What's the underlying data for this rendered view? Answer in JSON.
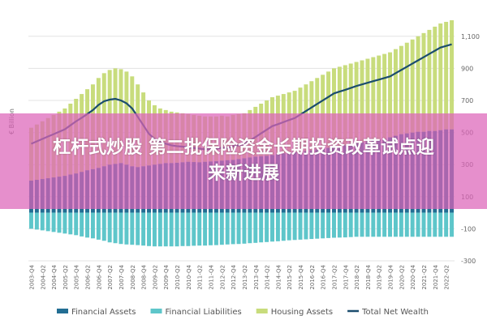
{
  "chart_data": {
    "type": "bar",
    "stacked": true,
    "y_label": "€ Billion",
    "categories": [
      "2003-Q4",
      null,
      "2004-Q2",
      null,
      "2004-Q4",
      null,
      "2005-Q2",
      null,
      "2005-Q4",
      null,
      "2006-Q2",
      null,
      "2006-Q4",
      null,
      "2007-Q2",
      null,
      "2007-Q4",
      null,
      "2008-Q2",
      null,
      "2008-Q4",
      null,
      "2009-Q2",
      null,
      "2009-Q4",
      null,
      "2010-Q2",
      null,
      "2010-Q4",
      null,
      "2011-Q2",
      null,
      "2011-Q4",
      null,
      "2012-Q2",
      null,
      "2012-Q4",
      null,
      "2013-Q2",
      null,
      "2013-Q4",
      null,
      "2014-Q2",
      null,
      "2014-Q4",
      null,
      "2015-Q2",
      null,
      "2015-Q4",
      null,
      "2016-Q2",
      null,
      "2016-Q4",
      null,
      "2017-Q2",
      null,
      "2017-Q4",
      null,
      "2018-Q2",
      null,
      "2018-Q4",
      null,
      "2019-Q2",
      null,
      "2019-Q4",
      null,
      "2020-Q2",
      null,
      "2020-Q4",
      null,
      "2021-Q2",
      null,
      "2021-Q4",
      null,
      "2022-Q2",
      null
    ],
    "series": [
      {
        "name": "Financial Assets",
        "type": "bar",
        "color": "#226e93",
        "values": [
          200,
          205,
          210,
          215,
          220,
          225,
          230,
          238,
          245,
          255,
          265,
          272,
          280,
          290,
          300,
          305,
          310,
          300,
          290,
          285,
          290,
          295,
          300,
          305,
          310,
          310,
          312,
          315,
          318,
          316,
          315,
          318,
          320,
          322,
          325,
          328,
          330,
          335,
          340,
          345,
          350,
          352,
          355,
          360,
          365,
          370,
          375,
          378,
          380,
          385,
          390,
          395,
          400,
          405,
          410,
          415,
          420,
          430,
          435,
          440,
          445,
          450,
          455,
          460,
          470,
          480,
          490,
          495,
          500,
          505,
          505,
          510,
          510,
          515,
          520,
          520
        ]
      },
      {
        "name": "Financial Liabilities",
        "type": "bar",
        "color": "#5ec6ca",
        "values": [
          -100,
          -105,
          -110,
          -115,
          -120,
          -125,
          -130,
          -135,
          -140,
          -148,
          -155,
          -160,
          -168,
          -175,
          -185,
          -190,
          -195,
          -198,
          -200,
          -202,
          -205,
          -208,
          -210,
          -210,
          -210,
          -210,
          -210,
          -208,
          -208,
          -206,
          -205,
          -205,
          -203,
          -202,
          -200,
          -198,
          -196,
          -195,
          -193,
          -190,
          -188,
          -185,
          -183,
          -180,
          -178,
          -175,
          -172,
          -170,
          -168,
          -166,
          -164,
          -162,
          -160,
          -158,
          -156,
          -155,
          -154,
          -152,
          -150,
          -150,
          -150,
          -150,
          -150,
          -150,
          -150,
          -150,
          -150,
          -150,
          -150,
          -150,
          -150,
          -150,
          -150,
          -150,
          -150,
          -150
        ]
      },
      {
        "name": "Housing Assets",
        "type": "bar",
        "color": "#c8dc7c",
        "values": [
          330,
          345,
          360,
          375,
          390,
          405,
          420,
          442,
          465,
          485,
          505,
          528,
          560,
          580,
          590,
          595,
          585,
          580,
          560,
          515,
          460,
          405,
          370,
          345,
          330,
          320,
          313,
          305,
          297,
          294,
          290,
          282,
          280,
          278,
          280,
          272,
          280,
          280,
          280,
          295,
          310,
          328,
          345,
          360,
          365,
          370,
          375,
          382,
          400,
          415,
          430,
          445,
          460,
          475,
          490,
          495,
          500,
          500,
          505,
          510,
          515,
          520,
          525,
          530,
          530,
          540,
          550,
          565,
          580,
          595,
          615,
          630,
          650,
          665,
          670,
          680
        ]
      },
      {
        "name": "Total Net Wealth",
        "type": "line",
        "color": "#1b4d6e",
        "values": [
          430,
          445,
          460,
          475,
          490,
          505,
          520,
          545,
          570,
          592,
          615,
          640,
          672,
          695,
          705,
          710,
          700,
          682,
          650,
          598,
          545,
          492,
          460,
          440,
          430,
          420,
          415,
          412,
          407,
          404,
          400,
          395,
          397,
          398,
          405,
          402,
          414,
          420,
          427,
          450,
          472,
          495,
          517,
          540,
          552,
          565,
          578,
          590,
          612,
          634,
          656,
          678,
          700,
          722,
          744,
          755,
          766,
          778,
          790,
          800,
          810,
          820,
          830,
          840,
          850,
          870,
          890,
          910,
          930,
          950,
          970,
          990,
          1010,
          1030,
          1040,
          1050
        ]
      }
    ],
    "ylim": [
      -300,
      1200
    ],
    "yticks": [
      -300,
      -100,
      100,
      300,
      500,
      700,
      900,
      {
        "value": 1100,
        "label": "1,100"
      }
    ],
    "grid": true,
    "legend": "bottom"
  },
  "banner": {
    "lines": [
      "杠杆式炒股 第二批保险资金长期投资改革试点迎",
      "来新进展"
    ]
  }
}
